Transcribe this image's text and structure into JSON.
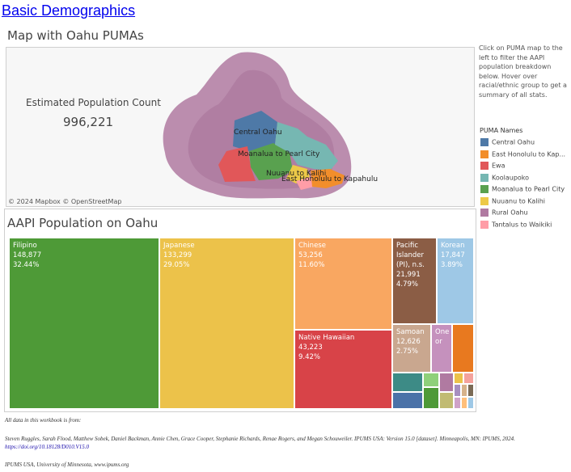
{
  "header": {
    "title": "Basic Demographics"
  },
  "map_section": {
    "title": "Map with Oahu PUMAs",
    "estimate_label": "Estimated Population Count",
    "estimate_value": "996,221",
    "attribution": "© 2024 Mapbox © OpenStreetMap",
    "labels": {
      "central_oahu": "Central Oahu",
      "moanalua": "Moanalua to Pearl City",
      "nuuanu": "Nuuanu to Kalihi",
      "east_honolulu": "East Honolulu to Kapahulu"
    }
  },
  "instructions": "Click on PUMA map to the left to filter the AAPI population breakdown below. Hover over racial/ethnic group to get a summary of all stats.",
  "legend": {
    "title": "PUMA Names",
    "items": [
      {
        "label": "Central Oahu",
        "color": "#4e79a7"
      },
      {
        "label": "East Honolulu to Kap...",
        "color": "#f28e2b"
      },
      {
        "label": "Ewa",
        "color": "#e15759"
      },
      {
        "label": "Koolaupoko",
        "color": "#76b7b2"
      },
      {
        "label": "Moanalua to Pearl City",
        "color": "#59a14f"
      },
      {
        "label": "Nuuanu to Kalihi",
        "color": "#edc948"
      },
      {
        "label": "Rural Oahu",
        "color": "#b07aa1"
      },
      {
        "label": "Tantalus to Waikiki",
        "color": "#ff9da7"
      }
    ]
  },
  "treemap": {
    "title": "AAPI Population on Oahu",
    "cells": [
      {
        "name": "Filipino",
        "value": "148,877",
        "pct": "32.44%",
        "color": "#4e9a37"
      },
      {
        "name": "Japanese",
        "value": "133,299",
        "pct": "29.05%",
        "color": "#ecc24a"
      },
      {
        "name": "Chinese",
        "value": "53,256",
        "pct": "11.60%",
        "color": "#f9a761"
      },
      {
        "name": "Pacific Islander (PI), n.s.",
        "name_lines": [
          "Pacific",
          "Islander",
          "(PI), n.s."
        ],
        "value": "21,991",
        "pct": "4.79%",
        "color": "#8b5d45"
      },
      {
        "name": "Korean",
        "value": "17,847",
        "pct": "3.89%",
        "color": "#9ec8e6"
      },
      {
        "name": "Native Hawaiian",
        "value": "43,223",
        "pct": "9.42%",
        "color": "#d84348"
      },
      {
        "name": "Samoan",
        "value": "12,626",
        "pct": "2.75%",
        "color": "#c9a78f"
      },
      {
        "name": "One or",
        "name_lines": [
          "One",
          "or"
        ],
        "color": "#c591bd"
      },
      {
        "name": "",
        "color": "#e8791f"
      }
    ],
    "small_colors": [
      "#3d8b86",
      "#4a72a8",
      "#8fd07a",
      "#4e9a37",
      "#b07aa1",
      "#c1bb72",
      "#ecc24a",
      "#f4a29c",
      "#a78fc0",
      "#d6b28a",
      "#7a6a55",
      "#cfa2c8",
      "#ffbf7a",
      "#9ec8e6"
    ]
  },
  "footer": {
    "line1": "All data in this workbook is from:",
    "line2": "Steven Ruggles, Sarah Flood, Matthew Sobek, Daniel Backman, Annie Chen, Grace Cooper, Stephanie Richards, Renae Rogers, and Megan Schouweiler. IPUMS USA: Version 15.0 [dataset]. Minneapolis, MN: IPUMS, 2024.",
    "doi": "https://doi.org/10.18128/D010.V15.0",
    "line3": "IPUMS USA, University of Minnesota, www.ipums.org"
  }
}
